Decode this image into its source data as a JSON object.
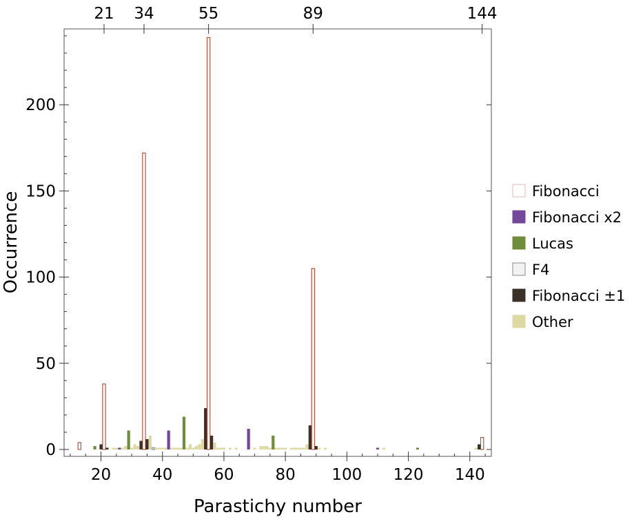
{
  "chart_data": {
    "type": "bar",
    "title": "",
    "xlabel": "Parastichy number",
    "ylabel": "Occurrence",
    "xlim": [
      8,
      147
    ],
    "ylim": [
      -4,
      244
    ],
    "x_ticks": [
      20,
      40,
      60,
      80,
      100,
      120,
      140
    ],
    "y_ticks": [
      0,
      50,
      100,
      150,
      200
    ],
    "top_ticks": [
      21,
      34,
      55,
      89,
      144
    ],
    "grid": false,
    "legend_position": "right",
    "series": [
      {
        "name": "Fibonacci",
        "color": "#ffffff",
        "stroke": "#b5533c",
        "points": [
          [
            13,
            4
          ],
          [
            21,
            38
          ],
          [
            34,
            172
          ],
          [
            55,
            239
          ],
          [
            89,
            105
          ],
          [
            144,
            7
          ]
        ]
      },
      {
        "name": "Fibonacci x2",
        "color": "#74479a",
        "stroke": "#74479a",
        "points": [
          [
            26,
            1
          ],
          [
            42,
            11
          ],
          [
            68,
            12
          ],
          [
            110,
            1
          ]
        ]
      },
      {
        "name": "Lucas",
        "color": "#6f8d3b",
        "stroke": "#6f8d3b",
        "points": [
          [
            18,
            2
          ],
          [
            29,
            11
          ],
          [
            47,
            19
          ],
          [
            76,
            8
          ],
          [
            123,
            1
          ]
        ]
      },
      {
        "name": "F4",
        "color": "#f2f2f2",
        "stroke": "#8a8a8a",
        "points": [
          [
            37,
            1
          ]
        ]
      },
      {
        "name": "Fibonacci ±1",
        "color": "#3a3128",
        "stroke": "#3a3128",
        "points": [
          [
            20,
            3
          ],
          [
            22,
            1
          ],
          [
            33,
            5
          ],
          [
            35,
            6
          ],
          [
            54,
            24
          ],
          [
            56,
            8
          ],
          [
            88,
            14
          ],
          [
            90,
            2
          ],
          [
            143,
            3
          ]
        ]
      },
      {
        "name": "Other",
        "color": "#ddd9a3",
        "stroke": "#ddd9a3",
        "points": [
          [
            24,
            1
          ],
          [
            25,
            1
          ],
          [
            27,
            1
          ],
          [
            28,
            2
          ],
          [
            30,
            1
          ],
          [
            31,
            3
          ],
          [
            32,
            2
          ],
          [
            36,
            8
          ],
          [
            38,
            1
          ],
          [
            39,
            1
          ],
          [
            40,
            1
          ],
          [
            41,
            1
          ],
          [
            43,
            1
          ],
          [
            44,
            1
          ],
          [
            45,
            1
          ],
          [
            46,
            1
          ],
          [
            48,
            1
          ],
          [
            49,
            3
          ],
          [
            50,
            1
          ],
          [
            51,
            2
          ],
          [
            52,
            3
          ],
          [
            53,
            6
          ],
          [
            57,
            4
          ],
          [
            58,
            1
          ],
          [
            59,
            1
          ],
          [
            60,
            1
          ],
          [
            62,
            1
          ],
          [
            64,
            1
          ],
          [
            70,
            1
          ],
          [
            72,
            2
          ],
          [
            73,
            2
          ],
          [
            74,
            2
          ],
          [
            75,
            1
          ],
          [
            77,
            1
          ],
          [
            78,
            1
          ],
          [
            79,
            1
          ],
          [
            80,
            1
          ],
          [
            82,
            1
          ],
          [
            83,
            1
          ],
          [
            84,
            1
          ],
          [
            85,
            1
          ],
          [
            86,
            1
          ],
          [
            87,
            3
          ],
          [
            91,
            1
          ],
          [
            93,
            1
          ],
          [
            112,
            1
          ],
          [
            142,
            1
          ]
        ]
      }
    ]
  }
}
